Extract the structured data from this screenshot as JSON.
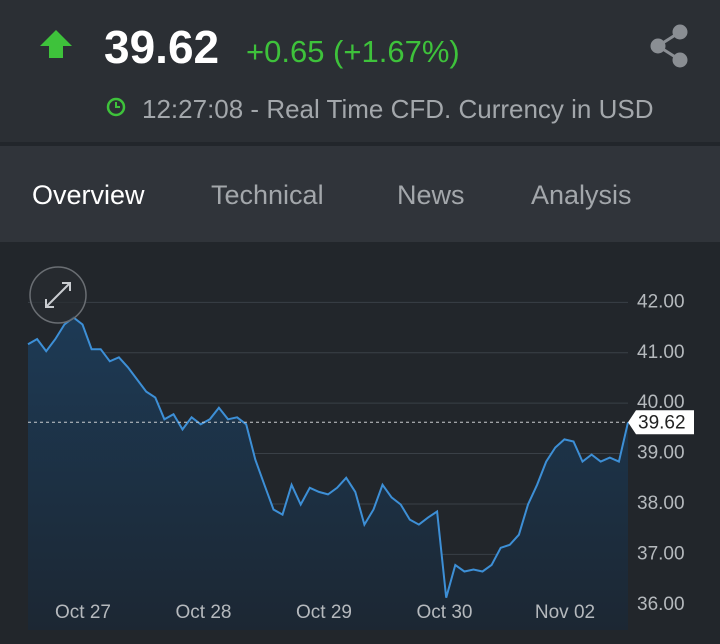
{
  "header": {
    "price": "39.62",
    "change": "+0.65 (+1.67%)",
    "status": "12:27:08 - Real Time CFD. Currency in USD"
  },
  "tabs": [
    "Overview",
    "Technical",
    "News",
    "Analysis"
  ],
  "chart_data": {
    "type": "line",
    "color": "#3d8fd6",
    "values": [
      41.17,
      41.27,
      41.03,
      41.27,
      41.56,
      41.7,
      41.56,
      41.07,
      41.07,
      40.83,
      40.91,
      40.71,
      40.47,
      40.23,
      40.11,
      39.68,
      39.78,
      39.48,
      39.72,
      39.58,
      39.68,
      39.91,
      39.68,
      39.72,
      39.58,
      38.88,
      38.38,
      37.89,
      37.79,
      38.38,
      37.99,
      38.32,
      38.24,
      38.19,
      38.32,
      38.52,
      38.24,
      37.59,
      37.89,
      38.38,
      38.13,
      37.99,
      37.69,
      37.59,
      37.73,
      37.85,
      36.14,
      36.79,
      36.66,
      36.7,
      36.66,
      36.79,
      37.13,
      37.19,
      37.39,
      37.99,
      38.38,
      38.84,
      39.12,
      39.28,
      39.24,
      38.84,
      38.98,
      38.84,
      38.92,
      38.84,
      39.62
    ],
    "xtick_labels": [
      "Oct 27",
      "Oct 28",
      "Oct 29",
      "Oct 30",
      "Nov 02"
    ],
    "ylim": [
      35.5,
      42.8
    ],
    "yticks": [
      {
        "value": 36,
        "label": "36.00"
      },
      {
        "value": 37,
        "label": "37.00"
      },
      {
        "value": 38,
        "label": "38.00"
      },
      {
        "value": 39,
        "label": "39.00"
      },
      {
        "value": 40,
        "label": "40.00"
      },
      {
        "value": 41,
        "label": "41.00"
      },
      {
        "value": 42,
        "label": "42.00"
      }
    ],
    "current": {
      "value": 39.62,
      "label": "39.62"
    },
    "grid": true
  }
}
